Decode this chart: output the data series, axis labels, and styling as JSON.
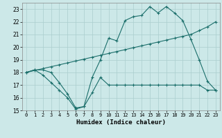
{
  "xlabel": "Humidex (Indice chaleur)",
  "background_color": "#cce8e8",
  "grid_color": "#aacece",
  "line_color": "#1a6e6a",
  "xlim": [
    -0.5,
    23.5
  ],
  "ylim": [
    15,
    23.5
  ],
  "xticks": [
    0,
    1,
    2,
    3,
    4,
    5,
    6,
    7,
    8,
    9,
    10,
    11,
    12,
    13,
    14,
    15,
    16,
    17,
    18,
    19,
    20,
    21,
    22,
    23
  ],
  "yticks": [
    15,
    16,
    17,
    18,
    19,
    20,
    21,
    22,
    23
  ],
  "line1_x": [
    0,
    1,
    2,
    3,
    4,
    5,
    6,
    7,
    8,
    9,
    10,
    11,
    12,
    13,
    14,
    15,
    16,
    17,
    18,
    19,
    20,
    21,
    22,
    23
  ],
  "line1_y": [
    18.0,
    18.2,
    17.8,
    17.2,
    16.6,
    16.0,
    15.1,
    15.3,
    16.4,
    17.6,
    17.0,
    17.0,
    17.0,
    17.0,
    17.0,
    17.0,
    17.0,
    17.0,
    17.0,
    17.0,
    17.0,
    17.0,
    16.6,
    16.6
  ],
  "line2_x": [
    0,
    1,
    2,
    3,
    4,
    5,
    6,
    7,
    8,
    9,
    10,
    11,
    12,
    13,
    14,
    15,
    16,
    17,
    18,
    19,
    20,
    21,
    22,
    23
  ],
  "line2_y": [
    18.0,
    18.15,
    18.3,
    18.45,
    18.6,
    18.75,
    18.9,
    19.05,
    19.2,
    19.35,
    19.5,
    19.65,
    19.8,
    19.95,
    20.1,
    20.25,
    20.4,
    20.55,
    20.7,
    20.85,
    21.0,
    21.3,
    21.6,
    22.0
  ],
  "line3_x": [
    0,
    1,
    2,
    3,
    4,
    5,
    6,
    7,
    8,
    9,
    10,
    11,
    12,
    13,
    14,
    15,
    16,
    17,
    18,
    19,
    20,
    21,
    22,
    23
  ],
  "line3_y": [
    18.0,
    18.2,
    18.2,
    18.0,
    17.2,
    16.3,
    15.2,
    15.3,
    17.6,
    19.0,
    20.7,
    20.5,
    22.1,
    22.4,
    22.5,
    23.2,
    22.7,
    23.2,
    22.7,
    22.1,
    20.6,
    19.0,
    17.3,
    16.6
  ]
}
